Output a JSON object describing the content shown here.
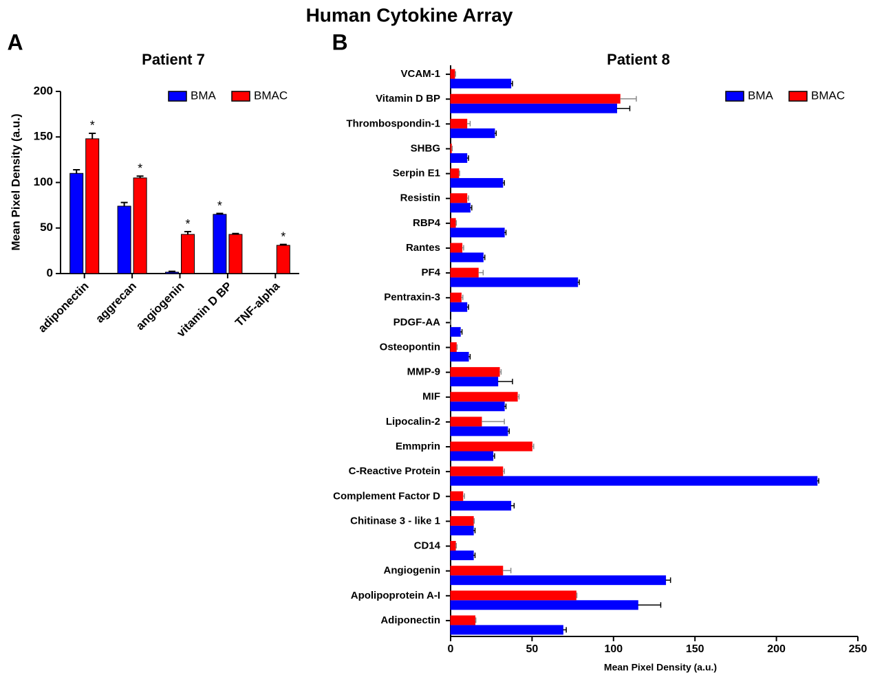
{
  "title": "Human Cytokine Array",
  "chart_data": [
    {
      "type": "bar",
      "panel": "A",
      "title": "Patient 7",
      "ylabel": "Mean Pixel Density (a.u.)",
      "categories": [
        "adiponectin",
        "aggrecan",
        "angiogenin",
        "vitamin D BP",
        "TNF-alpha"
      ],
      "series": [
        {
          "name": "BMA",
          "color": "#0000ff",
          "values": [
            110,
            74,
            1.5,
            65,
            0
          ],
          "errors": [
            4,
            4,
            1,
            1,
            0
          ],
          "annotations": [
            null,
            null,
            null,
            "*",
            null
          ]
        },
        {
          "name": "BMAC",
          "color": "#ff0000",
          "values": [
            148,
            105,
            43,
            43,
            31
          ],
          "errors": [
            6,
            2,
            3,
            1,
            1
          ],
          "annotations": [
            "*",
            "*",
            "*",
            null,
            "*"
          ]
        }
      ],
      "ylim": [
        0,
        200
      ],
      "yticks": [
        0,
        50,
        100,
        150,
        200
      ],
      "legend": "top-right"
    },
    {
      "type": "barh",
      "panel": "B",
      "title": "Patient 8",
      "xlabel": "Mean Pixel Density (a.u.)",
      "categories": [
        "VCAM-1",
        "Vitamin D BP",
        "Thrombospondin-1",
        "SHBG",
        "Serpin E1",
        "Resistin",
        "RBP4",
        "Rantes",
        "PF4",
        "Pentraxin-3",
        "PDGF-AA",
        "Osteopontin",
        "MMP-9",
        "MIF",
        "Lipocalin-2",
        "Emmprin",
        "C-Reactive Protein",
        "Complement Factor D",
        "Chitinase 3 - like 1",
        "CD14",
        "Angiogenin",
        "Apolipoprotein A-I",
        "Adiponectin"
      ],
      "series": [
        {
          "name": "BMA",
          "color": "#0000ff",
          "values": [
            37,
            102,
            27,
            10,
            32,
            12,
            33,
            20,
            78,
            10,
            6,
            11,
            29,
            33,
            35,
            26,
            225,
            37,
            14,
            14,
            132,
            115,
            69
          ],
          "errors": [
            1,
            8,
            1,
            1,
            1,
            1,
            1,
            1,
            1,
            1,
            1,
            1,
            9,
            1,
            1,
            1,
            1,
            2,
            1,
            1,
            3,
            14,
            2
          ]
        },
        {
          "name": "BMAC",
          "color": "#ff0000",
          "values": [
            2.5,
            104,
            10,
            0.5,
            5,
            10,
            3,
            7,
            17,
            6.5,
            0,
            3.5,
            30,
            41,
            19,
            50,
            32,
            7.5,
            14,
            3,
            32,
            77,
            15
          ],
          "errors": [
            0.5,
            10,
            2,
            0.5,
            0.5,
            1,
            0.5,
            1,
            3,
            1,
            0,
            0.5,
            1,
            1,
            14,
            1,
            1,
            1,
            0.5,
            0.5,
            5,
            0.5,
            0.5
          ]
        }
      ],
      "xlim": [
        0,
        250
      ],
      "xticks": [
        0,
        50,
        100,
        150,
        200,
        250
      ],
      "legend": "top-right"
    }
  ]
}
